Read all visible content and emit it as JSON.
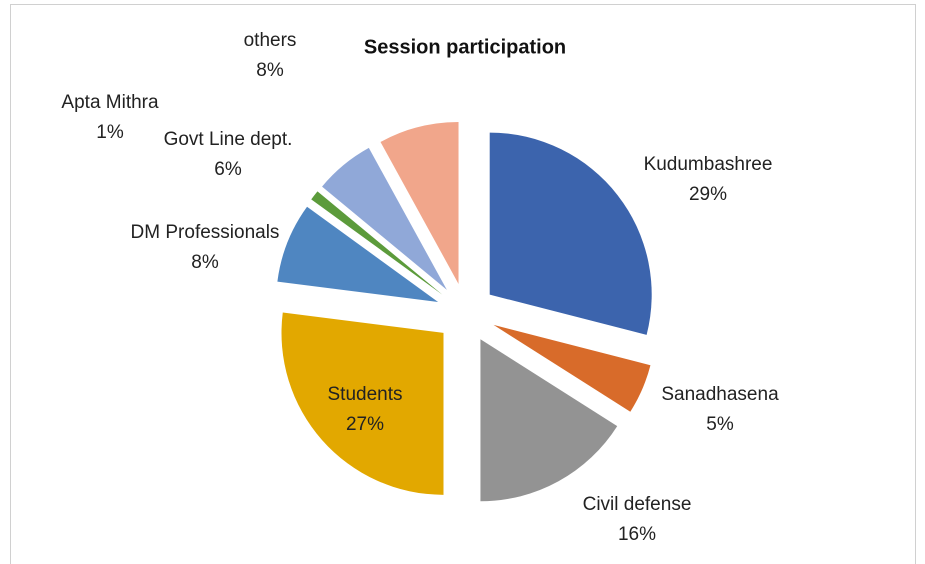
{
  "chart_data": {
    "type": "pie",
    "title": "Session participation",
    "categories": [
      "Kudumbashree",
      "Sanadhasena",
      "Civil defense",
      "Students",
      "DM Professionals",
      "Apta Mithra",
      "Govt Line dept.",
      "others"
    ],
    "values": [
      29,
      5,
      16,
      27,
      8,
      1,
      6,
      8
    ],
    "value_labels": [
      "29%",
      "5%",
      "16%",
      "27%",
      "8%",
      "1%",
      "6%",
      "8%"
    ],
    "colors": [
      "#3c64ad",
      "#d86b2a",
      "#939393",
      "#e2a800",
      "#4f86c1",
      "#5c9b3b",
      "#90a8d8",
      "#f1a68b"
    ]
  }
}
